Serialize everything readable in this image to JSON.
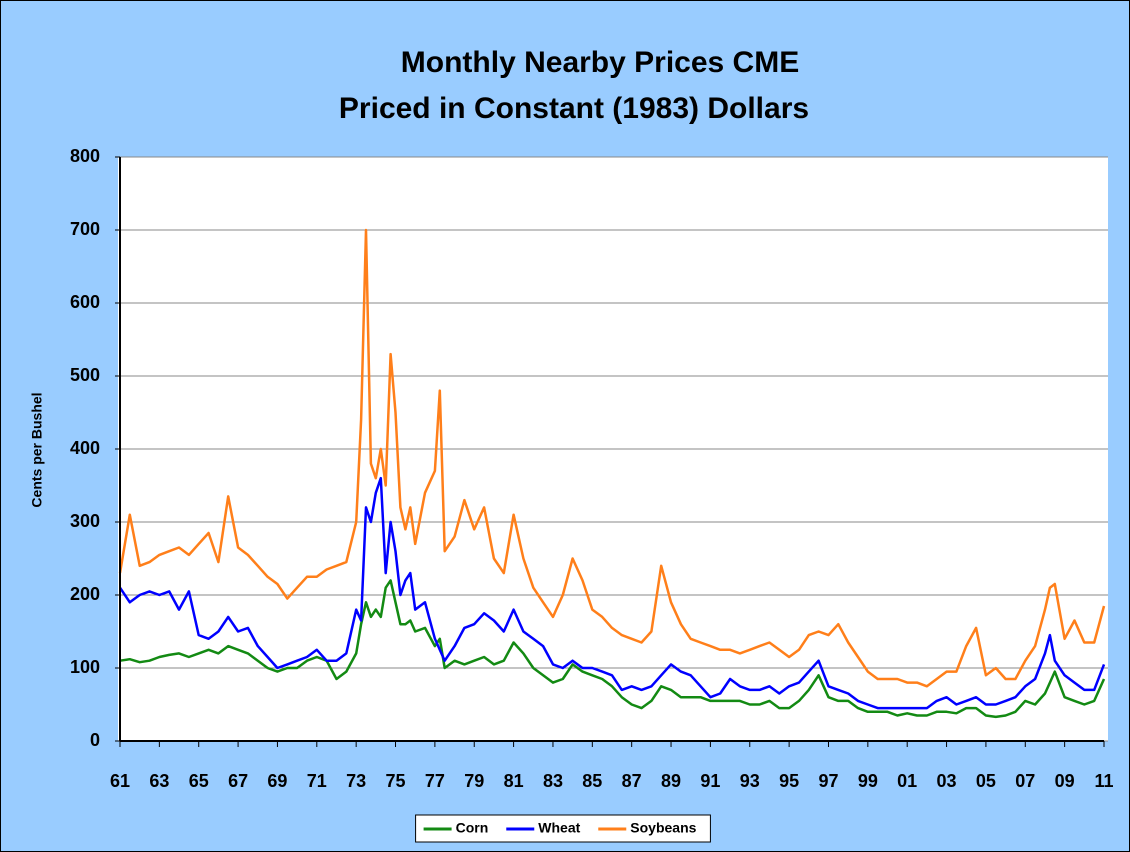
{
  "chart_data": {
    "type": "line",
    "title": "Monthly Nearby Prices CME",
    "subtitle": "Priced in Constant (1983) Dollars",
    "y_label": "Cents per Bushel",
    "x": [
      1961,
      1961.5,
      1962,
      1962.5,
      1963,
      1963.5,
      1964,
      1964.5,
      1965,
      1965.5,
      1966,
      1966.5,
      1967,
      1967.5,
      1968,
      1968.5,
      1969,
      1969.5,
      1970,
      1970.5,
      1971,
      1971.5,
      1972,
      1972.5,
      1973,
      1973.25,
      1973.5,
      1973.75,
      1974,
      1974.25,
      1974.5,
      1974.75,
      1975,
      1975.25,
      1975.5,
      1975.75,
      1976,
      1976.5,
      1977,
      1977.25,
      1977.5,
      1978,
      1978.5,
      1979,
      1979.5,
      1980,
      1980.5,
      1981,
      1981.5,
      1982,
      1982.5,
      1983,
      1983.5,
      1984,
      1984.5,
      1985,
      1985.5,
      1986,
      1986.5,
      1987,
      1987.5,
      1988,
      1988.5,
      1989,
      1989.5,
      1990,
      1990.5,
      1991,
      1991.5,
      1992,
      1992.5,
      1993,
      1993.5,
      1994,
      1994.5,
      1995,
      1995.5,
      1996,
      1996.5,
      1997,
      1997.5,
      1998,
      1998.5,
      1999,
      1999.5,
      2000,
      2000.5,
      2001,
      2001.5,
      2002,
      2002.5,
      2003,
      2003.5,
      2004,
      2004.5,
      2005,
      2005.5,
      2006,
      2006.5,
      2007,
      2007.5,
      2008,
      2008.25,
      2008.5,
      2009,
      2009.5,
      2010,
      2010.5,
      2011
    ],
    "series": [
      {
        "name": "Corn",
        "color": "#138a13",
        "values": [
          110,
          112,
          108,
          110,
          115,
          118,
          120,
          115,
          120,
          125,
          120,
          130,
          125,
          120,
          110,
          100,
          95,
          100,
          100,
          110,
          115,
          110,
          85,
          95,
          120,
          160,
          190,
          170,
          180,
          170,
          210,
          220,
          190,
          160,
          160,
          165,
          150,
          155,
          130,
          140,
          100,
          110,
          105,
          110,
          115,
          105,
          110,
          135,
          120,
          100,
          90,
          80,
          85,
          105,
          95,
          90,
          85,
          75,
          60,
          50,
          45,
          55,
          75,
          70,
          60,
          60,
          60,
          55,
          55,
          55,
          55,
          50,
          50,
          55,
          45,
          45,
          55,
          70,
          90,
          60,
          55,
          55,
          45,
          40,
          40,
          40,
          35,
          38,
          35,
          35,
          40,
          40,
          38,
          45,
          45,
          35,
          33,
          35,
          40,
          55,
          50,
          65,
          80,
          95,
          60,
          55,
          50,
          55,
          85
        ]
      },
      {
        "name": "Wheat",
        "color": "#0000ff",
        "values": [
          210,
          190,
          200,
          205,
          200,
          205,
          180,
          205,
          145,
          140,
          150,
          170,
          150,
          155,
          130,
          115,
          100,
          105,
          110,
          115,
          125,
          110,
          110,
          120,
          180,
          165,
          320,
          300,
          340,
          360,
          230,
          300,
          260,
          200,
          220,
          230,
          180,
          190,
          140,
          125,
          110,
          130,
          155,
          160,
          175,
          165,
          150,
          180,
          150,
          140,
          130,
          105,
          100,
          110,
          100,
          100,
          95,
          90,
          70,
          75,
          70,
          75,
          90,
          105,
          95,
          90,
          75,
          60,
          65,
          85,
          75,
          70,
          70,
          75,
          65,
          75,
          80,
          95,
          110,
          75,
          70,
          65,
          55,
          50,
          45,
          45,
          45,
          45,
          45,
          45,
          55,
          60,
          50,
          55,
          60,
          50,
          50,
          55,
          60,
          75,
          85,
          120,
          145,
          110,
          90,
          80,
          70,
          70,
          105
        ]
      },
      {
        "name": "Soybeans",
        "color": "#ff7f1a",
        "values": [
          230,
          310,
          240,
          245,
          255,
          260,
          265,
          255,
          270,
          285,
          245,
          335,
          265,
          255,
          240,
          225,
          215,
          195,
          210,
          225,
          225,
          235,
          240,
          245,
          300,
          440,
          700,
          380,
          360,
          400,
          350,
          530,
          450,
          320,
          290,
          320,
          270,
          340,
          370,
          480,
          260,
          280,
          330,
          290,
          320,
          250,
          230,
          310,
          250,
          210,
          190,
          170,
          200,
          250,
          220,
          180,
          170,
          155,
          145,
          140,
          135,
          150,
          240,
          190,
          160,
          140,
          135,
          130,
          125,
          125,
          120,
          125,
          130,
          135,
          125,
          115,
          125,
          145,
          150,
          145,
          160,
          135,
          115,
          95,
          85,
          85,
          85,
          80,
          80,
          75,
          85,
          95,
          95,
          130,
          155,
          90,
          100,
          85,
          85,
          110,
          130,
          180,
          210,
          215,
          140,
          165,
          135,
          135,
          185
        ]
      }
    ],
    "xlim": [
      1961,
      2011
    ],
    "xticks": [
      {
        "value": 1961,
        "label": "61"
      },
      {
        "value": 1963,
        "label": "63"
      },
      {
        "value": 1965,
        "label": "65"
      },
      {
        "value": 1967,
        "label": "67"
      },
      {
        "value": 1969,
        "label": "69"
      },
      {
        "value": 1971,
        "label": "71"
      },
      {
        "value": 1973,
        "label": "73"
      },
      {
        "value": 1975,
        "label": "75"
      },
      {
        "value": 1977,
        "label": "77"
      },
      {
        "value": 1979,
        "label": "79"
      },
      {
        "value": 1981,
        "label": "81"
      },
      {
        "value": 1983,
        "label": "83"
      },
      {
        "value": 1985,
        "label": "85"
      },
      {
        "value": 1987,
        "label": "87"
      },
      {
        "value": 1989,
        "label": "89"
      },
      {
        "value": 1991,
        "label": "91"
      },
      {
        "value": 1993,
        "label": "93"
      },
      {
        "value": 1995,
        "label": "95"
      },
      {
        "value": 1997,
        "label": "97"
      },
      {
        "value": 1999,
        "label": "99"
      },
      {
        "value": 2001,
        "label": "01"
      },
      {
        "value": 2003,
        "label": "03"
      },
      {
        "value": 2005,
        "label": "05"
      },
      {
        "value": 2007,
        "label": "07"
      },
      {
        "value": 2009,
        "label": "09"
      },
      {
        "value": 2011,
        "label": "11"
      }
    ],
    "ylim": [
      0,
      800
    ],
    "yticks": [
      0,
      100,
      200,
      300,
      400,
      500,
      600,
      700,
      800
    ],
    "grid": true,
    "legend": "bottom"
  }
}
